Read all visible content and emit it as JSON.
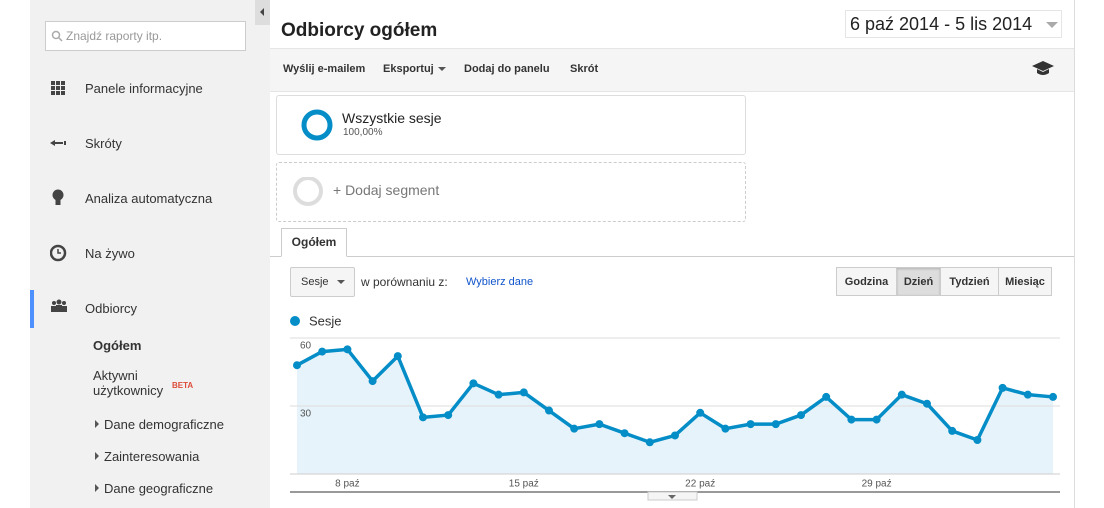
{
  "search": {
    "placeholder": "Znajdź raporty itp."
  },
  "sidebar": {
    "items": [
      "Panele informacyjne",
      "Skróty",
      "Analiza automatyczna",
      "Na żywo",
      "Odbiorcy"
    ],
    "subitems": [
      "Ogółem",
      "Aktywni użytkownicy",
      "Dane demograficzne",
      "Zainteresowania",
      "Dane geograficzne"
    ],
    "badge": "BETA"
  },
  "header": {
    "title": "Odbiorcy ogółem",
    "date_range": "6 paź 2014 - 5 lis 2014"
  },
  "toolbar": [
    "Wyślij e-mailem",
    "Eksportuj",
    "Dodaj do panelu",
    "Skrót"
  ],
  "segments": {
    "active": "Wszystkie sesje",
    "share": "100,00%",
    "add": "+ Dodaj segment"
  },
  "tab": "Ogółem",
  "controls": {
    "metric": "Sesje",
    "compare_label": "w porównaniu z:",
    "compare_link": "Wybierz dane",
    "granularity": [
      "Godzina",
      "Dzień",
      "Tydzień",
      "Miesiąc"
    ],
    "selected": 1
  },
  "chart_data": {
    "type": "line",
    "categories": [
      null,
      null,
      "8 paź",
      null,
      null,
      null,
      null,
      null,
      null,
      "15 paź",
      null,
      null,
      null,
      null,
      null,
      null,
      "22 paź",
      null,
      null,
      null,
      null,
      null,
      null,
      "29 paź",
      null,
      null,
      null,
      null,
      null,
      null,
      null
    ],
    "series": [
      {
        "name": "Sesje",
        "color": "#058dc7",
        "values": [
          48,
          54,
          55,
          41,
          52,
          25,
          26,
          40,
          35,
          36,
          28,
          20,
          22,
          18,
          14,
          17,
          27,
          20,
          22,
          22,
          26,
          34,
          24,
          24,
          35,
          31,
          19,
          15,
          38,
          35,
          34
        ]
      }
    ],
    "ylim": [
      0,
      60
    ],
    "yticks": [
      30,
      60
    ],
    "grid": true
  }
}
